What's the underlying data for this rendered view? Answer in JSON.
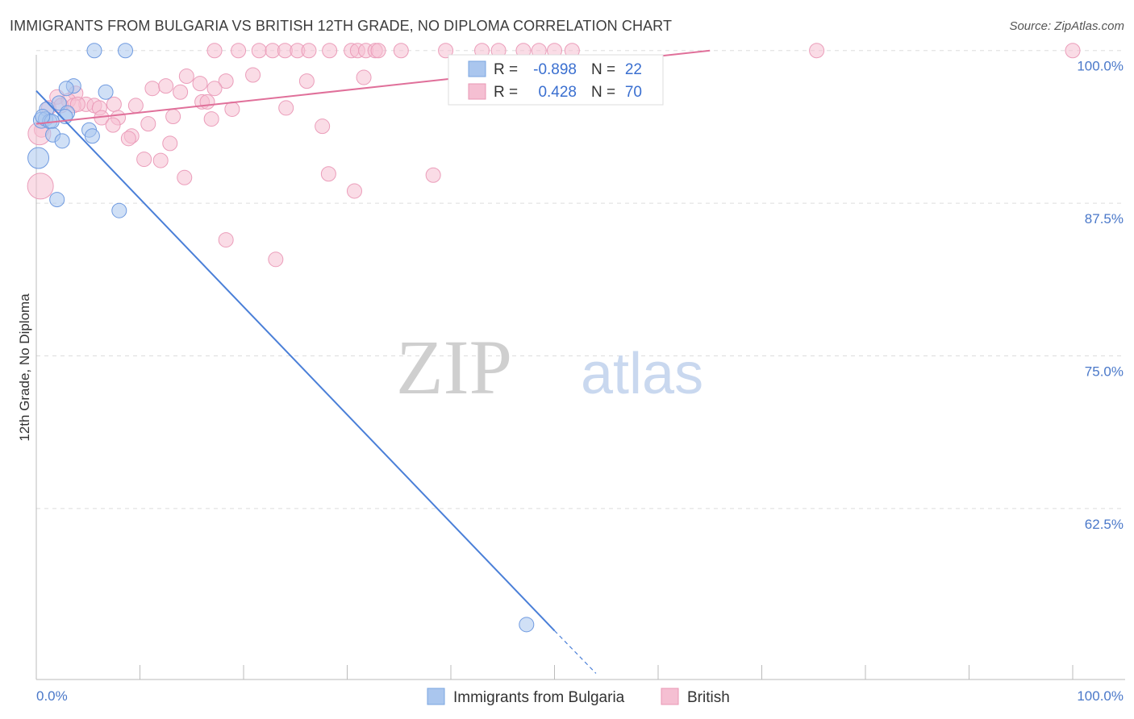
{
  "header": {
    "title": "IMMIGRANTS FROM BULGARIA VS BRITISH 12TH GRADE, NO DIPLOMA CORRELATION CHART",
    "source": "Source: ZipAtlas.com"
  },
  "watermark": {
    "zip": "ZIP",
    "atlas": "atlas"
  },
  "colors": {
    "blue": "#4a7fd8",
    "blue_fill": "#aac6ee",
    "pink": "#e0709a",
    "pink_fill": "#f5bfd2",
    "grid": "#dddddd",
    "tick_label": "#4a78c9"
  },
  "legend": {
    "r_label": "R =",
    "n_label": "N =",
    "rows": [
      {
        "name": "Immigrants from Bulgaria",
        "r": "-0.898",
        "n": "22",
        "color": "blue"
      },
      {
        "name": "British",
        "r": "0.428",
        "n": "70",
        "color": "pink"
      }
    ]
  },
  "chart_data": {
    "type": "scatter",
    "title": "IMMIGRANTS FROM BULGARIA VS BRITISH 12TH GRADE, NO DIPLOMA CORRELATION CHART",
    "xlabel": "",
    "ylabel": "12th Grade, No Diploma",
    "xlim": [
      0,
      100
    ],
    "ylim": [
      48.5,
      101.5
    ],
    "x_tick_labels": [
      "0.0%",
      "100.0%"
    ],
    "y_ticks": [
      100.0,
      87.5,
      75.0,
      62.5
    ],
    "y_tick_labels": [
      "100.0%",
      "87.5%",
      "75.0%",
      "62.5%"
    ],
    "series": [
      {
        "name": "Immigrants from Bulgaria",
        "color": "blue",
        "trend": {
          "x": [
            0.0,
            50.0
          ],
          "y": [
            96.7,
            52.5
          ],
          "dashed_to": [
            54.0,
            49.0
          ]
        },
        "points": [
          [
            5.6,
            100.0,
            9
          ],
          [
            8.6,
            100.0,
            9
          ],
          [
            3.6,
            97.1,
            9
          ],
          [
            2.9,
            96.9,
            9
          ],
          [
            6.7,
            96.6,
            9
          ],
          [
            2.2,
            95.7,
            9
          ],
          [
            1.0,
            95.2,
            9
          ],
          [
            3.0,
            94.9,
            9
          ],
          [
            0.5,
            94.3,
            10
          ],
          [
            0.9,
            94.4,
            9
          ],
          [
            1.3,
            94.2,
            9
          ],
          [
            2.8,
            94.6,
            9
          ],
          [
            1.5,
            94.2,
            9
          ],
          [
            5.1,
            93.5,
            9
          ],
          [
            1.6,
            93.1,
            9
          ],
          [
            5.4,
            93.0,
            9
          ],
          [
            2.5,
            92.6,
            9
          ],
          [
            0.2,
            91.2,
            13
          ],
          [
            2.0,
            87.8,
            9
          ],
          [
            8.0,
            86.9,
            9
          ],
          [
            47.3,
            53.0,
            9
          ],
          [
            0.6,
            94.6,
            9
          ]
        ]
      },
      {
        "name": "British",
        "color": "pink",
        "trend": {
          "x": [
            0.0,
            65.0
          ],
          "y": [
            94.0,
            100.0
          ]
        },
        "points": [
          [
            17.2,
            100.0,
            9
          ],
          [
            19.5,
            100.0,
            9
          ],
          [
            21.5,
            100.0,
            9
          ],
          [
            22.8,
            100.0,
            9
          ],
          [
            24.0,
            100.0,
            9
          ],
          [
            25.2,
            100.0,
            9
          ],
          [
            26.3,
            100.0,
            9
          ],
          [
            28.3,
            100.0,
            9
          ],
          [
            30.4,
            100.0,
            9
          ],
          [
            31.0,
            100.0,
            9
          ],
          [
            31.8,
            100.0,
            9
          ],
          [
            32.7,
            100.0,
            9
          ],
          [
            33.0,
            100.0,
            9
          ],
          [
            35.2,
            100.0,
            9
          ],
          [
            39.5,
            100.0,
            9
          ],
          [
            43.0,
            100.0,
            9
          ],
          [
            44.6,
            100.0,
            9
          ],
          [
            47.0,
            100.0,
            9
          ],
          [
            48.5,
            100.0,
            9
          ],
          [
            50.0,
            100.0,
            9
          ],
          [
            51.7,
            100.0,
            9
          ],
          [
            75.3,
            100.0,
            9
          ],
          [
            100.0,
            100.0,
            9
          ],
          [
            20.9,
            98.0,
            9
          ],
          [
            14.5,
            97.9,
            9
          ],
          [
            15.8,
            97.3,
            9
          ],
          [
            31.6,
            97.8,
            9
          ],
          [
            18.3,
            97.5,
            9
          ],
          [
            26.1,
            97.5,
            9
          ],
          [
            11.2,
            96.9,
            9
          ],
          [
            12.5,
            97.1,
            9
          ],
          [
            17.2,
            96.9,
            9
          ],
          [
            13.9,
            96.6,
            9
          ],
          [
            3.8,
            96.5,
            9
          ],
          [
            2.0,
            96.2,
            9
          ],
          [
            3.1,
            95.9,
            9
          ],
          [
            7.5,
            95.6,
            9
          ],
          [
            9.6,
            95.5,
            9
          ],
          [
            4.8,
            95.6,
            9
          ],
          [
            5.6,
            95.5,
            9
          ],
          [
            16.0,
            95.8,
            9
          ],
          [
            16.5,
            95.8,
            9
          ],
          [
            6.1,
            95.3,
            9
          ],
          [
            18.9,
            95.2,
            9
          ],
          [
            24.1,
            95.3,
            9
          ],
          [
            1.2,
            95.3,
            9
          ],
          [
            2.4,
            95.5,
            9
          ],
          [
            3.6,
            95.5,
            9
          ],
          [
            6.3,
            94.5,
            9
          ],
          [
            7.9,
            94.5,
            9
          ],
          [
            13.2,
            94.6,
            9
          ],
          [
            16.9,
            94.4,
            9
          ],
          [
            10.8,
            94.0,
            9
          ],
          [
            7.4,
            93.9,
            9
          ],
          [
            27.6,
            93.8,
            9
          ],
          [
            0.5,
            93.5,
            9
          ],
          [
            9.2,
            93.0,
            9
          ],
          [
            8.9,
            92.8,
            9
          ],
          [
            12.9,
            92.4,
            9
          ],
          [
            10.4,
            91.1,
            9
          ],
          [
            12.0,
            91.0,
            9
          ],
          [
            0.3,
            93.2,
            14
          ],
          [
            14.3,
            89.6,
            9
          ],
          [
            28.2,
            89.9,
            9
          ],
          [
            38.3,
            89.8,
            9
          ],
          [
            30.7,
            88.5,
            9
          ],
          [
            0.4,
            88.9,
            16
          ],
          [
            18.3,
            84.5,
            9
          ],
          [
            23.1,
            82.9,
            9
          ],
          [
            4.0,
            95.6,
            9
          ]
        ]
      }
    ]
  }
}
